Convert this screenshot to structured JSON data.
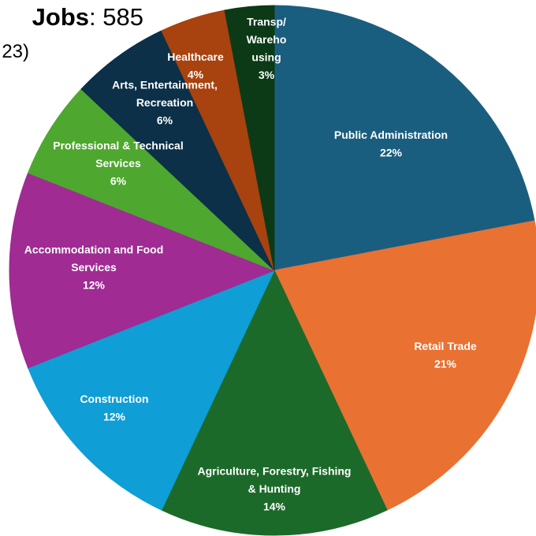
{
  "header": {
    "title_bold": "Jobs",
    "title_sep": ":",
    "title_value": "585",
    "subtitle": "23)"
  },
  "chart_data": {
    "type": "pie",
    "title": "Jobs: 585",
    "start_angle_deg": 0,
    "direction": "clockwise",
    "slices": [
      {
        "label": "Public Administration",
        "percent": 22,
        "color": "#1a5e7f",
        "label_lines": [
          "Public Administration",
          "22%"
        ]
      },
      {
        "label": "Retail Trade",
        "percent": 21,
        "color": "#e97132",
        "label_lines": [
          "Retail Trade",
          "21%"
        ]
      },
      {
        "label": "Agriculture, Forestry, Fishing & Hunting",
        "percent": 14,
        "color": "#1c6a2a",
        "label_lines": [
          "Agriculture, Forestry, Fishing",
          "& Hunting",
          "14%"
        ]
      },
      {
        "label": "Construction",
        "percent": 12,
        "color": "#0f9ed5",
        "label_lines": [
          "Construction",
          "12%"
        ]
      },
      {
        "label": "Accommodation and Food Services",
        "percent": 12,
        "color": "#a02b93",
        "label_lines": [
          "Accommodation and Food",
          "Services",
          "12%"
        ]
      },
      {
        "label": "Professional & Technical Services",
        "percent": 6,
        "color": "#4ea72e",
        "label_lines": [
          "Professional & Technical",
          "Services",
          "6%"
        ]
      },
      {
        "label": "Arts, Entertainment, Recreation",
        "percent": 6,
        "color": "#0b3048",
        "label_lines": [
          "Arts, Entertainment,",
          "Recreation",
          "6%"
        ]
      },
      {
        "label": "Healthcare",
        "percent": 4,
        "color": "#a8420f",
        "label_lines": [
          "Healthcare",
          "4%"
        ]
      },
      {
        "label": "Transp/Warehousing",
        "percent": 3,
        "color": "#0c3a17",
        "label_lines": [
          "Transp/",
          "Wareho",
          "using",
          "3%"
        ]
      }
    ]
  }
}
